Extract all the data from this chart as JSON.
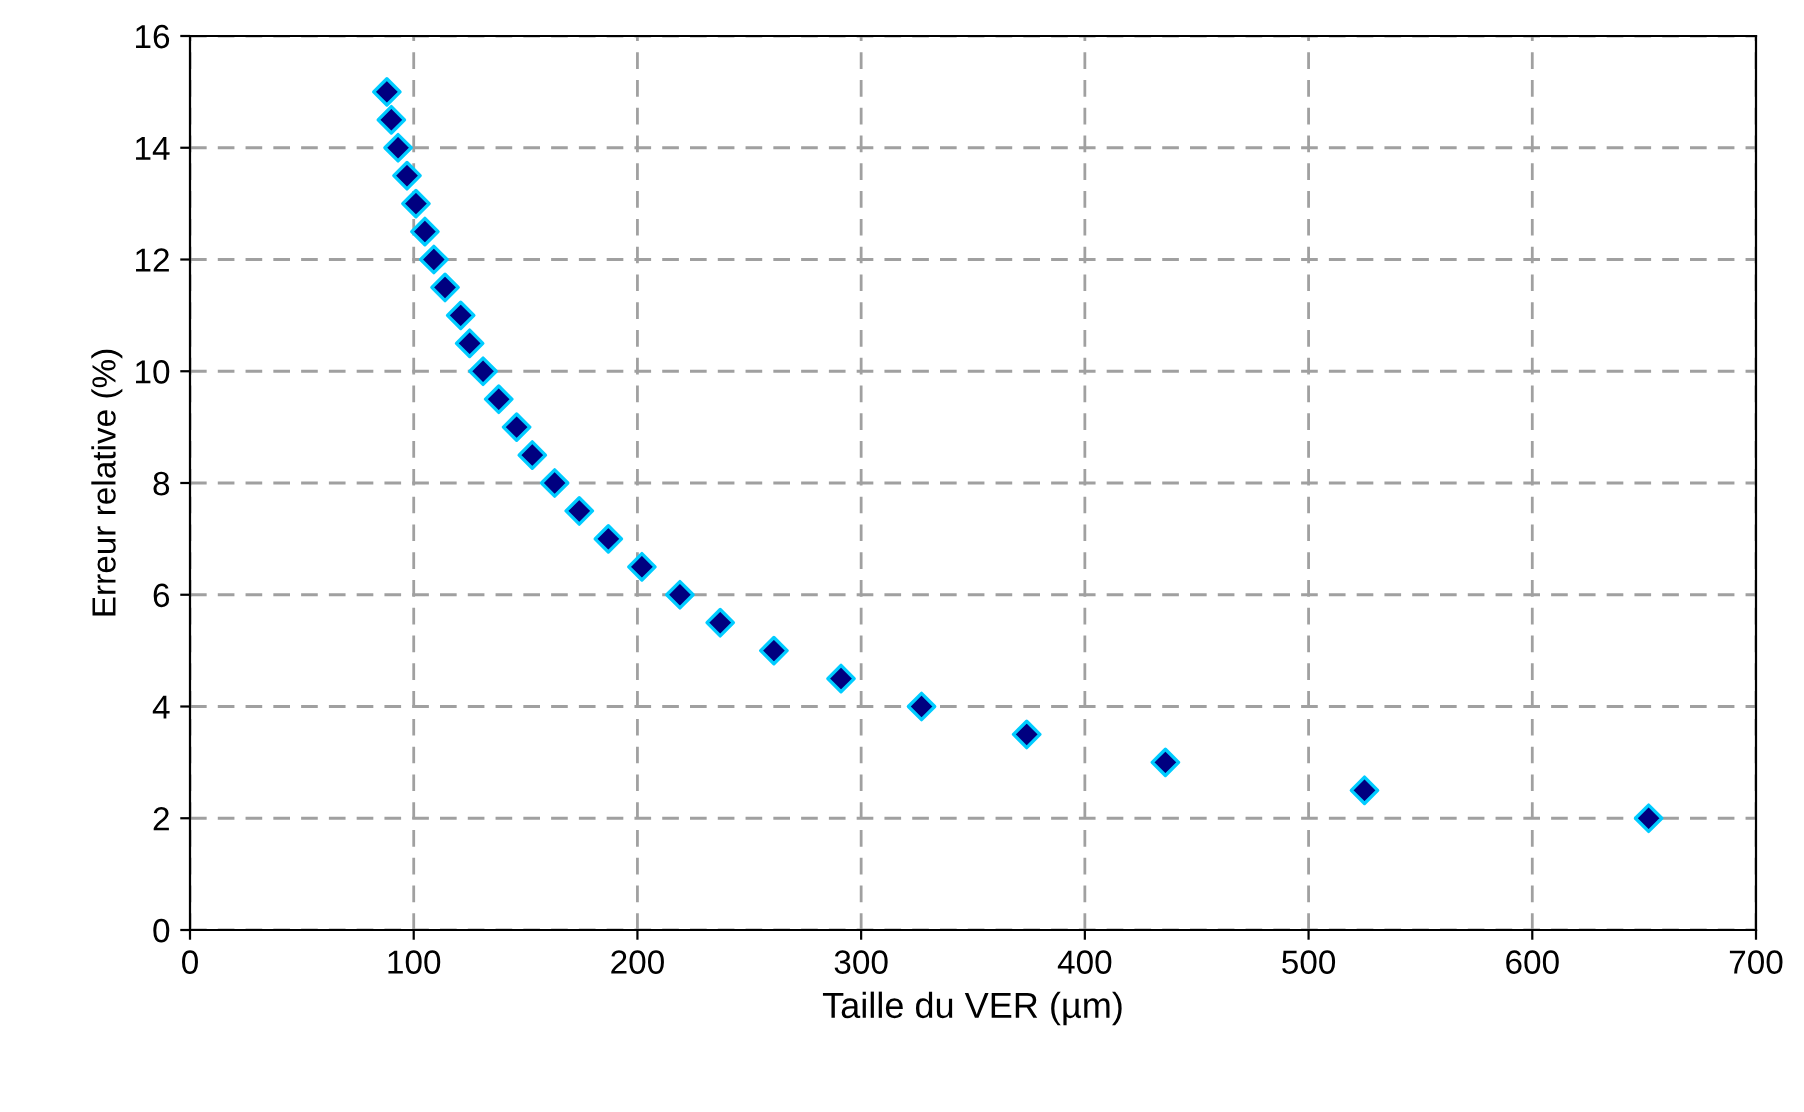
{
  "chart_data": {
    "type": "scatter",
    "xlabel": "Taille du VER (µm)",
    "ylabel": "Erreur relative (%)",
    "x": [
      88,
      90,
      93,
      97,
      101,
      105,
      109,
      114,
      121,
      125,
      131,
      138,
      146,
      153,
      163,
      174,
      187,
      202,
      219,
      237,
      261,
      291,
      327,
      374,
      436,
      525,
      652
    ],
    "series": [
      {
        "color": "#000080",
        "values": [
          15,
          14.5,
          14,
          13.5,
          13,
          12.5,
          12,
          11.5,
          11,
          10.5,
          10,
          9.5,
          9,
          8.5,
          8,
          7.5,
          7,
          6.5,
          6,
          5.5,
          5,
          4.5,
          4,
          3.5,
          3,
          2.5,
          2
        ]
      }
    ],
    "marker": "diamond",
    "xlim": [
      0,
      700
    ],
    "xticks": [
      0,
      100,
      200,
      300,
      400,
      500,
      600,
      700
    ],
    "ylim": [
      0,
      16
    ],
    "yticks": [
      0,
      2,
      4,
      6,
      8,
      10,
      12,
      14,
      16
    ],
    "grid": true,
    "legend": false
  }
}
